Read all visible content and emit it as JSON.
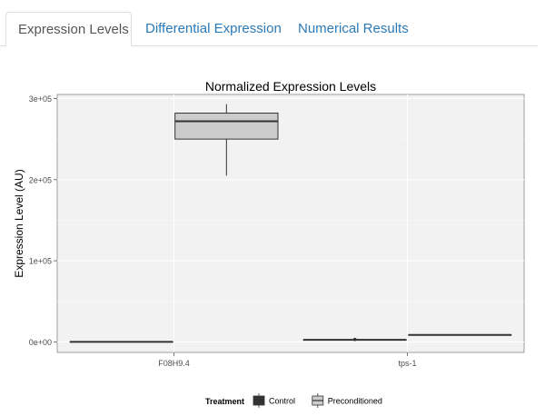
{
  "tabs": [
    {
      "label": "Expression Levels",
      "active": true
    },
    {
      "label": "Differential Expression",
      "active": false
    },
    {
      "label": "Numerical Results",
      "active": false
    }
  ],
  "colors": {
    "tab_link": "#2a7ab8",
    "panel_bg": "#f2f2f2",
    "grid": "#ffffff",
    "control_fill": "#333333",
    "preconditioned_fill": "#cccccc",
    "outline": "#333333"
  },
  "chart_data": {
    "type": "box",
    "title": "Normalized Expression Levels",
    "ylabel": "Expression Level (AU)",
    "xlabel": "",
    "ylim": [
      -13000,
      305000
    ],
    "yticks": [
      0,
      100000,
      200000,
      300000
    ],
    "ytick_labels": [
      "0e+00",
      "1e+05",
      "2e+05",
      "3e+05"
    ],
    "categories": [
      "F08H9.4",
      "tps-1"
    ],
    "legend": {
      "title": "Treatment",
      "position": "bottom"
    },
    "grid": true,
    "series": [
      {
        "name": "Control",
        "color": "#333333",
        "boxes": [
          {
            "category": "F08H9.4",
            "min": 0,
            "q1": 0,
            "median": 0,
            "q3": 0,
            "max": 0,
            "outliers": []
          },
          {
            "category": "tps-1",
            "min": 2500,
            "q1": 2500,
            "median": 2500,
            "q3": 2500,
            "max": 2500,
            "outliers": [
              3000
            ]
          }
        ]
      },
      {
        "name": "Preconditioned",
        "color": "#cccccc",
        "boxes": [
          {
            "category": "F08H9.4",
            "min": 205000,
            "q1": 250000,
            "median": 272000,
            "q3": 282000,
            "max": 293000,
            "outliers": []
          },
          {
            "category": "tps-1",
            "min": 8500,
            "q1": 8500,
            "median": 8500,
            "q3": 8500,
            "max": 8500,
            "outliers": []
          }
        ]
      }
    ]
  }
}
